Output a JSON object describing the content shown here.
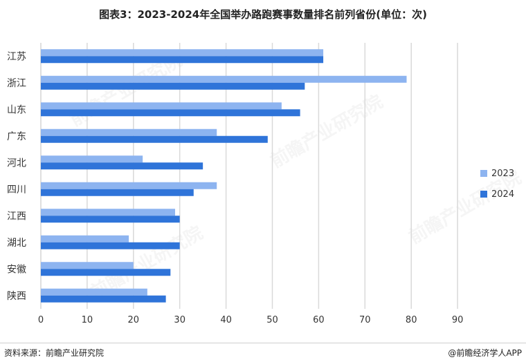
{
  "title": "图表3：2023-2024年全国举办路跑赛事数量排名前列省份(单位：次)",
  "footer": {
    "source": "资料来源：前瞻产业研究院",
    "brand": "@前瞻经济学人APP"
  },
  "watermark": "前瞻产业研究院",
  "colors": {
    "2023": "#8DB4F0",
    "2024": "#2F74D9",
    "grid": "#d9d9d9"
  },
  "chart_data": {
    "type": "bar",
    "orientation": "horizontal",
    "categories": [
      "江苏",
      "浙江",
      "山东",
      "广东",
      "河北",
      "四川",
      "江西",
      "湖北",
      "安徽",
      "陕西"
    ],
    "series": [
      {
        "name": "2023",
        "values": [
          61,
          79,
          52,
          38,
          22,
          38,
          29,
          19,
          20,
          23
        ]
      },
      {
        "name": "2024",
        "values": [
          61,
          57,
          56,
          49,
          35,
          33,
          30,
          30,
          28,
          27
        ]
      }
    ],
    "xticks": [
      "0",
      "10",
      "20",
      "30",
      "40",
      "50",
      "60",
      "70",
      "80",
      "90"
    ],
    "xlim": [
      0,
      90
    ],
    "grid": true,
    "legend": "right"
  }
}
